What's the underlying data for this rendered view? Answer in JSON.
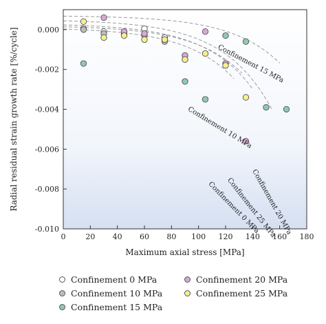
{
  "chart_data": {
    "type": "scatter",
    "xlabel": "Maximum axial stress [MPa]",
    "ylabel": "Radial residual strain growth rate [%/cycle]",
    "xlim": [
      0,
      180
    ],
    "ylim": [
      -0.01,
      0.001
    ],
    "x_ticks": [
      0,
      20,
      40,
      60,
      80,
      100,
      120,
      140,
      160,
      180
    ],
    "y_ticks": [
      0.0,
      -0.002,
      -0.004,
      -0.006,
      -0.008,
      -0.01
    ],
    "y_tick_labels": [
      "0.000",
      "-0.002",
      "-0.004",
      "-0.006",
      "-0.008",
      "-0.010"
    ],
    "grid": false,
    "legend_position": "bottom",
    "series": [
      {
        "name": "Confinement 0 MPa",
        "color": "#ffffff",
        "x": [
          15,
          30,
          45,
          60,
          75,
          90
        ],
        "y": [
          5e-05,
          -0.0001,
          -0.0001,
          5e-05,
          -0.0004,
          -0.0015
        ]
      },
      {
        "name": "Confinement 10 MPa",
        "color": "#bdbdbd",
        "x": [
          15,
          30,
          45,
          60,
          75,
          90
        ],
        "y": [
          0.0,
          -0.0002,
          -0.0002,
          -0.0003,
          -0.0006,
          -0.0013
        ]
      },
      {
        "name": "Confinement 15 MPa",
        "color": "#8fc9b4",
        "x": [
          15,
          90,
          105,
          120,
          135,
          150,
          165
        ],
        "y": [
          -0.0017,
          -0.0026,
          -0.0035,
          -0.0003,
          -0.0006,
          -0.0039,
          -0.004
        ]
      },
      {
        "name": "Confinement 20 MPa",
        "color": "#d9a8d6",
        "x": [
          30,
          45,
          60,
          75,
          90,
          105,
          120,
          135
        ],
        "y": [
          0.0006,
          -0.0001,
          -0.0002,
          -0.0005,
          -0.0013,
          -0.0001,
          -0.0017,
          -0.0056
        ]
      },
      {
        "name": "Confinement 25 MPa",
        "color": "#f6f08c",
        "x": [
          15,
          30,
          45,
          60,
          75,
          90,
          105,
          120,
          135
        ],
        "y": [
          0.0004,
          -0.0004,
          -0.0003,
          -0.0005,
          -0.0005,
          -0.0015,
          -0.0012,
          -0.0018,
          -0.0034
        ]
      }
    ],
    "fit_curves": [
      {
        "label": "Confinement 0 MPa",
        "a": 0.0001,
        "b": 7.5e-05,
        "c": 2.8,
        "x_end": 126,
        "label_x": 125,
        "label_y": -0.009
      },
      {
        "label": "Confinement 10 MPa",
        "a": 0.0002,
        "b": 5.9e-05,
        "c": 2.8,
        "x_end": 132,
        "label_x": 115,
        "label_y": -0.005
      },
      {
        "label": "Confinement 25 MPa",
        "a": 0.0003,
        "b": 6.5e-05,
        "c": 2.8,
        "x_end": 140,
        "label_x": 138,
        "label_y": -0.009
      },
      {
        "label": "Confinement 20 MPa",
        "a": 0.0005,
        "b": 6e-05,
        "c": 2.8,
        "x_end": 154,
        "label_x": 153,
        "label_y": -0.0087
      },
      {
        "label": "Confinement 15 MPa",
        "a": 0.0007,
        "b": 2.7e-05,
        "c": 2.8,
        "x_end": 160,
        "label_x": 138,
        "label_y": -0.0018
      }
    ]
  }
}
